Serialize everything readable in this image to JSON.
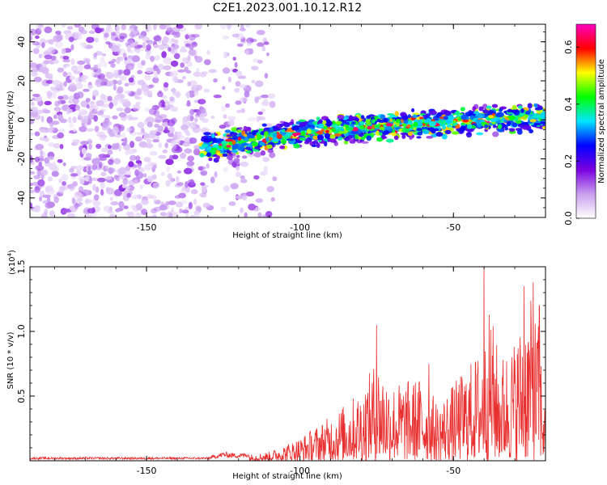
{
  "title": "C2E1.2023.001.10.12.R12",
  "chart_data": [
    {
      "type": "heatmap",
      "xlabel": "Height of straight line (km)",
      "ylabel": "Frequency (Hz)",
      "xlim": [
        -188,
        -20
      ],
      "ylim": [
        -50,
        49
      ],
      "xticks": [
        "-150",
        "-100",
        "-50"
      ],
      "xtick_values": [
        -150,
        -100,
        -50
      ],
      "yticks": [
        "-40",
        "-20",
        "0",
        "20",
        "40"
      ],
      "ytick_values": [
        -40,
        -20,
        0,
        20,
        40
      ],
      "ridge": {
        "x": [
          -130,
          -110,
          -90,
          -70,
          -50,
          -30,
          -20
        ],
        "y": [
          -14,
          -9,
          -5,
          -3,
          -1,
          1,
          2
        ]
      },
      "noise_region_x": [
        -188,
        -108
      ],
      "colorbar": {
        "label": "Normalized spectral amplitude",
        "range": [
          0,
          0.68
        ],
        "ticks": [
          "0.0",
          "0.2",
          "0.4",
          "0.6"
        ],
        "tick_values": [
          0,
          0.2,
          0.4,
          0.6
        ],
        "colors": [
          "#ffffff",
          "#c9a0f0",
          "#7a00e0",
          "#0000ff",
          "#00e5ff",
          "#00ff00",
          "#ffff00",
          "#ff0000",
          "#ff00c0"
        ]
      },
      "grid": false
    },
    {
      "type": "line",
      "xlabel": "Height of straight line (km)",
      "ylabel": "SNR (10 * v/v)",
      "scale_label": "(x10",
      "scale_exp": "4",
      "scale_close": ")",
      "xlim": [
        -188,
        -20
      ],
      "ylim": [
        0,
        1.5
      ],
      "xticks": [
        "-150",
        "-100",
        "-50"
      ],
      "xtick_values": [
        -150,
        -100,
        -50
      ],
      "yticks": [
        "0.5",
        "1.0",
        "1.5"
      ],
      "ytick_values": [
        0.5,
        1.0,
        1.5
      ],
      "color": "#e83030",
      "envelope": {
        "x": [
          -188,
          -130,
          -125,
          -120,
          -110,
          -100,
          -90,
          -80,
          -75,
          -70,
          -60,
          -55,
          -50,
          -45,
          -40,
          -38,
          -35,
          -30,
          -25,
          -22,
          -20
        ],
        "y": [
          0.02,
          0.02,
          0.05,
          0.04,
          0.07,
          0.18,
          0.35,
          0.55,
          0.8,
          0.6,
          0.65,
          0.45,
          0.6,
          0.75,
          0.9,
          1.2,
          0.8,
          0.95,
          1.25,
          1.05,
          0.35
        ]
      },
      "peaks": [
        {
          "x": -75,
          "y": 1.05
        },
        {
          "x": -58,
          "y": 0.75
        },
        {
          "x": -40,
          "y": 1.52
        },
        {
          "x": -27,
          "y": 1.35
        },
        {
          "x": -24,
          "y": 1.38
        },
        {
          "x": -22,
          "y": 1.2
        }
      ],
      "grid": false
    }
  ]
}
